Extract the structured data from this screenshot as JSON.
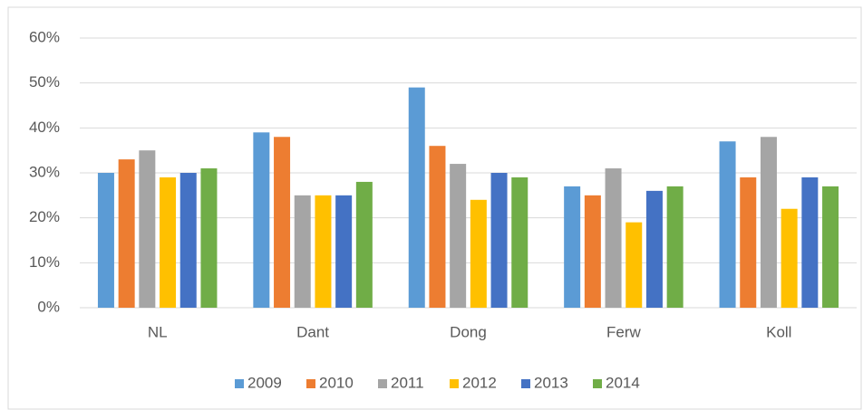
{
  "chart_data": {
    "type": "bar",
    "categories": [
      "NL",
      "Dant",
      "Dong",
      "Ferw",
      "Koll"
    ],
    "series": [
      {
        "name": "2009",
        "color": "#5b9bd5",
        "values": [
          30,
          39,
          49,
          27,
          37
        ]
      },
      {
        "name": "2010",
        "color": "#ed7d31",
        "values": [
          33,
          38,
          36,
          25,
          29
        ]
      },
      {
        "name": "2011",
        "color": "#a5a5a5",
        "values": [
          35,
          25,
          32,
          31,
          38
        ]
      },
      {
        "name": "2012",
        "color": "#ffc000",
        "values": [
          29,
          25,
          24,
          19,
          22
        ]
      },
      {
        "name": "2013",
        "color": "#4472c4",
        "values": [
          30,
          25,
          30,
          26,
          29
        ]
      },
      {
        "name": "2014",
        "color": "#70ad47",
        "values": [
          31,
          28,
          29,
          27,
          27
        ]
      }
    ],
    "ylim": [
      0,
      60
    ],
    "yticks": [
      {
        "value": 0,
        "label": "0%"
      },
      {
        "value": 10,
        "label": "10%"
      },
      {
        "value": 20,
        "label": "20%"
      },
      {
        "value": 30,
        "label": "30%"
      },
      {
        "value": 40,
        "label": "40%"
      },
      {
        "value": 50,
        "label": "50%"
      },
      {
        "value": 60,
        "label": "60%"
      }
    ],
    "grid": true,
    "legend": "bottom"
  }
}
